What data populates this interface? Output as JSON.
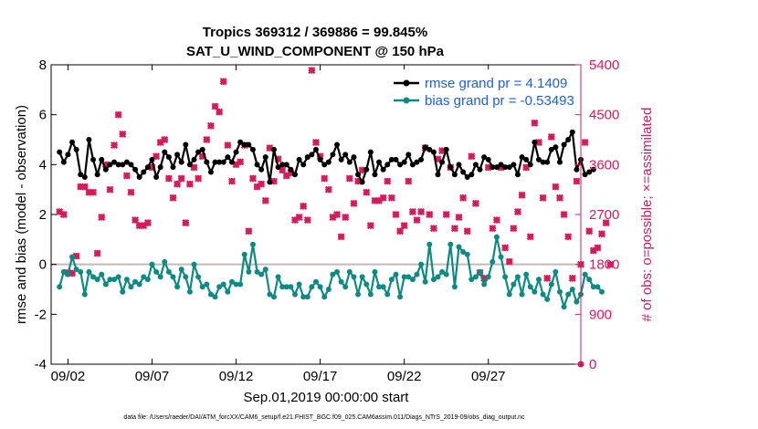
{
  "colors": {
    "rmse": "#000000",
    "bias": "#0f8a83",
    "obs": "#d61a5a",
    "zero_line": "#c4b9b9",
    "legend_text": "#1f5fd6"
  },
  "chart_data": {
    "type": "line",
    "title": [
      "Tropics 369312 / 369886 = 99.845%",
      "SAT_U_WIND_COMPONENT @ 150 hPa"
    ],
    "xlabel": "Sep.01,2019 00:00:00 start",
    "ylabel_left": "rmse and bias (model - observation)",
    "ylabel_right": "# of obs: o=possible; ×=assimilated",
    "xlim": [
      0,
      31.5
    ],
    "ylim_left": [
      -4,
      8
    ],
    "ylim_right": [
      0,
      5400
    ],
    "x_ticks": [
      {
        "x": 1,
        "label": "09/02"
      },
      {
        "x": 6,
        "label": "09/07"
      },
      {
        "x": 11,
        "label": "09/12"
      },
      {
        "x": 16,
        "label": "09/17"
      },
      {
        "x": 21,
        "label": "09/22"
      },
      {
        "x": 26,
        "label": "09/27"
      }
    ],
    "y_ticks_left": [
      8,
      6,
      4,
      2,
      0,
      -2,
      -4
    ],
    "y_ticks_right": [
      5400,
      4500,
      3600,
      2700,
      1800,
      900,
      0
    ],
    "legend": [
      {
        "label": "rmse grand pr = 4.1409",
        "series": "rmse"
      },
      {
        "label": "bias grand pr = -0.53493",
        "series": "bias"
      }
    ],
    "step": 0.25,
    "series": [
      {
        "name": "rmse",
        "axis": "left",
        "values": [
          4.5,
          4.1,
          4.4,
          4.9,
          4.6,
          3.6,
          3.5,
          5.0,
          4.2,
          3.6,
          4.2,
          3.8,
          4.0,
          4.1,
          4.0,
          4.0,
          4.1,
          4.0,
          3.8,
          3.5,
          3.7,
          3.9,
          4.2,
          3.5,
          3.9,
          4.5,
          4.3,
          3.9,
          4.4,
          4.1,
          4.8,
          4.0,
          4.2,
          4.5,
          4.6,
          4.1,
          3.7,
          4.1,
          4.1,
          4.1,
          4.3,
          4.1,
          4.5,
          4.9,
          4.8,
          4.8,
          4.6,
          4.0,
          3.8,
          4.3,
          3.3,
          4.6,
          3.9,
          4.0,
          4.0,
          3.8,
          3.6,
          4.2,
          4.0,
          4.3,
          4.4,
          4.6,
          4.2,
          4.0,
          4.1,
          4.4,
          4.8,
          4.2,
          4.4,
          4.1,
          4.3,
          3.6,
          3.3,
          3.8,
          4.5,
          3.6,
          4.1,
          3.8,
          4.0,
          4.2,
          4.2,
          4.0,
          4.1,
          4.4,
          4.0,
          4.1,
          4.2,
          4.7,
          4.6,
          4.5,
          3.6,
          4.1,
          4.6,
          3.9,
          3.6,
          4.0,
          3.7,
          3.5,
          3.6,
          4.0,
          3.8,
          4.3,
          4.2,
          3.9,
          3.9,
          4.0,
          3.9,
          3.9,
          4.0,
          3.6,
          4.3,
          4.2,
          4.0,
          4.9,
          4.2,
          4.1,
          4.1,
          4.6,
          4.7,
          4.1,
          4.8,
          5.0,
          5.3,
          3.8,
          4.2,
          3.6,
          3.7,
          3.8
        ]
      },
      {
        "name": "bias",
        "axis": "left",
        "values": [
          -0.9,
          -0.3,
          -0.4,
          0.3,
          -0.2,
          -0.3,
          -1.2,
          -0.3,
          -0.5,
          -0.6,
          -0.4,
          -0.8,
          -0.6,
          -0.6,
          -0.5,
          -1.1,
          -0.6,
          -0.9,
          -0.7,
          -0.8,
          -0.5,
          -0.6,
          0.0,
          -0.3,
          -0.5,
          0.1,
          -0.3,
          -0.5,
          -0.9,
          -0.2,
          -0.5,
          -1.1,
          0.0,
          -0.5,
          -0.9,
          -0.8,
          -1.2,
          -1.3,
          -0.9,
          -0.8,
          -1.1,
          -0.7,
          -0.8,
          -0.8,
          0.4,
          -0.3,
          0.8,
          -0.3,
          -0.4,
          -0.2,
          -1.2,
          -1.3,
          -0.5,
          -0.9,
          -0.9,
          -0.9,
          -1.2,
          -0.8,
          -1.3,
          -1.3,
          -0.9,
          -0.7,
          -0.9,
          -1.3,
          -1.0,
          -0.4,
          -0.3,
          -0.7,
          -0.9,
          -0.3,
          -0.5,
          -1.2,
          -0.5,
          -0.8,
          -1.2,
          -0.3,
          -0.9,
          -0.9,
          -1.2,
          -0.6,
          -0.4,
          -1.3,
          -0.5,
          -0.5,
          -0.6,
          -0.4,
          0.0,
          -0.7,
          0.8,
          -0.6,
          -0.5,
          -0.3,
          -0.4,
          0.8,
          -0.9,
          0.7,
          0.5,
          0.4,
          -0.6,
          -0.5,
          -0.3,
          -0.8,
          -0.5,
          0.1,
          1.1,
          0.3,
          -0.5,
          -1.2,
          -0.8,
          -0.5,
          -1.2,
          -0.4,
          -0.9,
          -1.1,
          -0.6,
          -1.2,
          -1.4,
          -0.8,
          -0.3,
          -1.1,
          -1.7,
          -1.2,
          -1.0,
          -1.5,
          -1.2,
          -0.4,
          -0.6,
          -0.9,
          -0.9,
          -1.1
        ]
      },
      {
        "name": "obs_assimilated",
        "axis": "right",
        "values": [
          2750,
          2700,
          1650,
          1640,
          1950,
          3200,
          3200,
          3100,
          3100,
          2000,
          2650,
          3600,
          3150,
          3950,
          4500,
          4150,
          3400,
          3100,
          2600,
          2500,
          2500,
          2550,
          3550,
          3750,
          4000,
          4050,
          3350,
          3000,
          3250,
          3350,
          2550,
          3250,
          3550,
          3350,
          3750,
          4050,
          4300,
          4650,
          4550,
          5100,
          3950,
          3300,
          3600,
          3650,
          3950,
          2400,
          3350,
          3200,
          3250,
          2950,
          3900,
          3300,
          3700,
          3500,
          3400,
          3450,
          2600,
          2650,
          2850,
          2600,
          5300,
          4000,
          3750,
          3350,
          3150,
          2650,
          2700,
          2300,
          2650,
          3350,
          2900,
          3300,
          3500,
          3100,
          2500,
          2950,
          2950,
          3000,
          3300,
          3000,
          2700,
          2400,
          2500,
          3300,
          2750,
          2600,
          2750,
          3900,
          2700,
          2450,
          3700,
          3850,
          2700,
          3550,
          2450,
          2650,
          3000,
          2400,
          3750,
          2900,
          1650,
          1550,
          3550,
          2450,
          2600,
          3550,
          2100,
          1850,
          2450,
          2750,
          3050,
          3550,
          2300,
          4350,
          4000,
          3000,
          1550,
          4100,
          3200,
          3000,
          2700,
          2300,
          1550,
          3300,
          1800,
          4000,
          2400,
          2050,
          2100,
          2350,
          2550,
          1800
        ]
      }
    ],
    "footnote": "data file: /Users/raeder/DAI/ATM_forcXX/CAM6_setup/f.e21.FHIST_BGC.f09_025.CAM6assim.011/Diags_NTrS_2019-09/obs_diag_output.nc"
  }
}
